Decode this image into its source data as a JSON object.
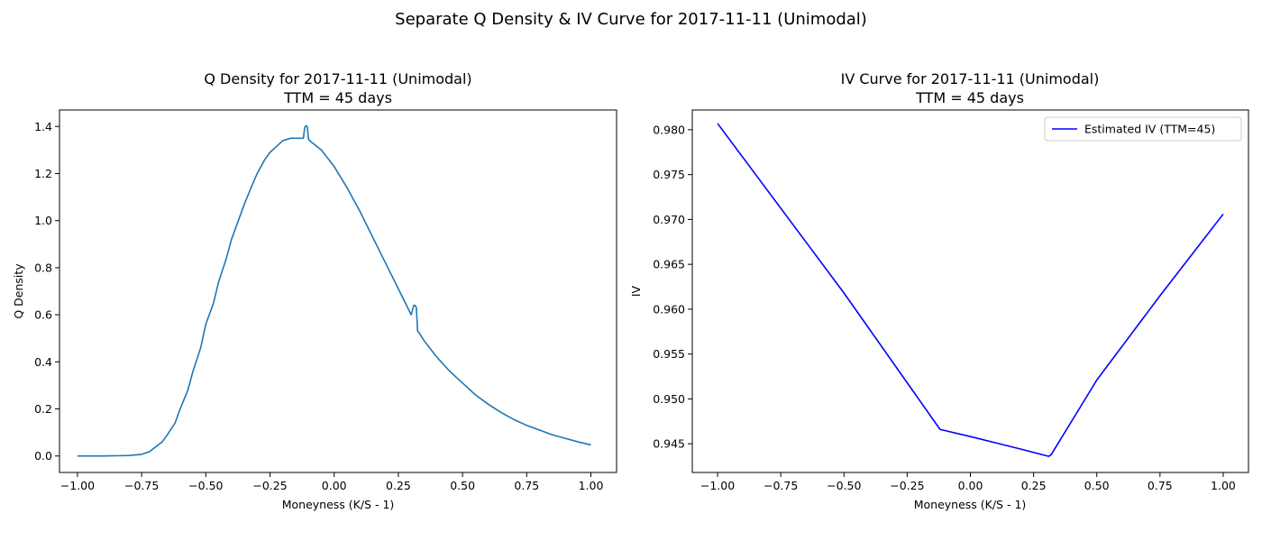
{
  "figure": {
    "suptitle": "Separate Q Density & IV Curve for 2017-11-11 (Unimodal)"
  },
  "chart_data": [
    {
      "type": "line",
      "title_line1": "Q Density for 2017-11-11 (Unimodal)",
      "title_line2": "TTM = 45 days",
      "xlabel": "Moneyness (K/S - 1)",
      "ylabel": "Q Density",
      "xlim": [
        -1.07,
        1.1
      ],
      "ylim": [
        -0.07,
        1.47
      ],
      "xticks": [
        -1.0,
        -0.75,
        -0.5,
        -0.25,
        0.0,
        0.25,
        0.5,
        0.75,
        1.0
      ],
      "xtick_labels": [
        "−1.00",
        "−0.75",
        "−0.50",
        "−0.25",
        "0.00",
        "0.25",
        "0.50",
        "0.75",
        "1.00"
      ],
      "yticks": [
        0.0,
        0.2,
        0.4,
        0.6,
        0.8,
        1.0,
        1.2,
        1.4
      ],
      "ytick_labels": [
        "0.0",
        "0.2",
        "0.4",
        "0.6",
        "0.8",
        "1.0",
        "1.2",
        "1.4"
      ],
      "grid": false,
      "legend": null,
      "series": [
        {
          "color": "#1f77b4",
          "x": [
            -1.0,
            -0.9,
            -0.8,
            -0.75,
            -0.72,
            -0.7,
            -0.67,
            -0.65,
            -0.62,
            -0.6,
            -0.57,
            -0.55,
            -0.52,
            -0.5,
            -0.47,
            -0.45,
            -0.42,
            -0.4,
            -0.37,
            -0.35,
            -0.32,
            -0.3,
            -0.27,
            -0.25,
            -0.22,
            -0.2,
            -0.17,
            -0.15,
            -0.12,
            -0.115,
            -0.11,
            -0.105,
            -0.1,
            -0.09,
            -0.05,
            0.0,
            0.05,
            0.1,
            0.15,
            0.2,
            0.25,
            0.3,
            0.31,
            0.315,
            0.32,
            0.325,
            0.33,
            0.35,
            0.4,
            0.45,
            0.5,
            0.55,
            0.6,
            0.65,
            0.7,
            0.75,
            0.8,
            0.85,
            0.9,
            0.95,
            1.0
          ],
          "y": [
            0.0,
            0.0,
            0.002,
            0.007,
            0.018,
            0.035,
            0.06,
            0.09,
            0.14,
            0.2,
            0.28,
            0.36,
            0.46,
            0.56,
            0.65,
            0.74,
            0.84,
            0.92,
            1.01,
            1.07,
            1.15,
            1.2,
            1.26,
            1.29,
            1.32,
            1.34,
            1.35,
            1.35,
            1.35,
            1.395,
            1.403,
            1.4,
            1.345,
            1.335,
            1.3,
            1.23,
            1.14,
            1.04,
            0.93,
            0.82,
            0.71,
            0.6,
            0.64,
            0.64,
            0.63,
            0.53,
            0.525,
            0.49,
            0.42,
            0.36,
            0.31,
            0.26,
            0.22,
            0.185,
            0.155,
            0.13,
            0.11,
            0.09,
            0.075,
            0.06,
            0.047
          ]
        }
      ]
    },
    {
      "type": "line",
      "title_line1": "IV Curve for 2017-11-11 (Unimodal)",
      "title_line2": "TTM = 45 days",
      "xlabel": "Moneyness (K/S - 1)",
      "ylabel": "IV",
      "xlim": [
        -1.1,
        1.1
      ],
      "ylim": [
        0.9418,
        0.9822
      ],
      "xticks": [
        -1.0,
        -0.75,
        -0.5,
        -0.25,
        0.0,
        0.25,
        0.5,
        0.75,
        1.0
      ],
      "xtick_labels": [
        "−1.00",
        "−0.75",
        "−0.50",
        "−0.25",
        "0.00",
        "0.25",
        "0.50",
        "0.75",
        "1.00"
      ],
      "yticks": [
        0.945,
        0.95,
        0.955,
        0.96,
        0.965,
        0.97,
        0.975,
        0.98
      ],
      "ytick_labels": [
        "0.945",
        "0.950",
        "0.955",
        "0.960",
        "0.965",
        "0.970",
        "0.975",
        "0.980"
      ],
      "grid": false,
      "legend": {
        "placement": "top-right",
        "entries": [
          "Estimated IV (TTM=45)"
        ]
      },
      "series": [
        {
          "name": "Estimated IV (TTM=45)",
          "color": "#0000ff",
          "x": [
            -1.0,
            -0.5,
            -0.12,
            0.0,
            0.1,
            0.2,
            0.31,
            0.32,
            0.5,
            0.75,
            1.0
          ],
          "y": [
            0.9807,
            0.9618,
            0.9466,
            0.9458,
            0.9451,
            0.9444,
            0.9436,
            0.9438,
            0.9521,
            0.9615,
            0.9706
          ]
        }
      ]
    }
  ]
}
